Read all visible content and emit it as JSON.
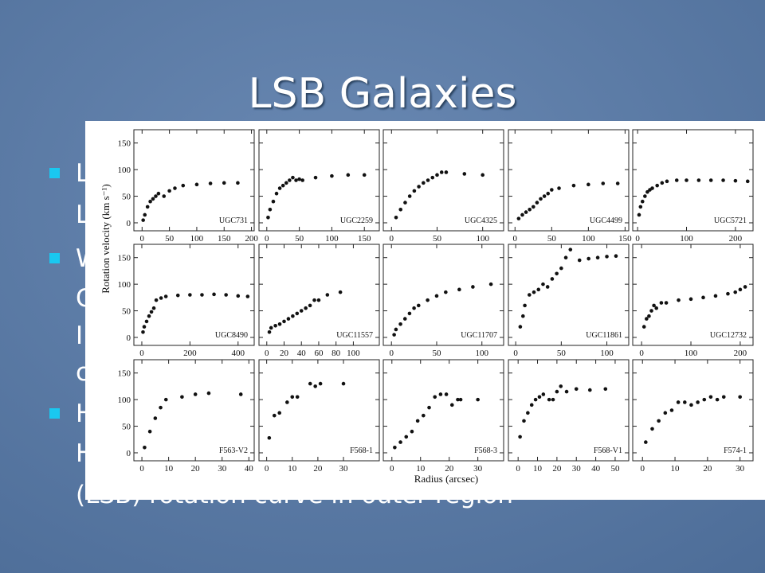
{
  "slide": {
    "title": "LSB Galaxies",
    "bullets": [
      [
        "L",
        "L"
      ],
      [
        "W",
        "C",
        "I",
        "c"
      ],
      [
        "H",
        "H",
        "(LSB) rotation curve in outer region"
      ]
    ]
  },
  "figure": {
    "ylabel": "Rotation velocity (km s⁻¹)",
    "xlabel": "Radius (arcsec)"
  },
  "chart_data": [
    {
      "type": "scatter",
      "title": "UGC731",
      "x": [
        2,
        5,
        10,
        15,
        20,
        25,
        30,
        40,
        50,
        60,
        75,
        100,
        125,
        150,
        175
      ],
      "values": [
        5,
        15,
        30,
        40,
        45,
        50,
        55,
        50,
        60,
        65,
        70,
        72,
        74,
        75,
        75
      ],
      "xlim": [
        -15,
        205
      ],
      "ylim": [
        -15,
        175
      ],
      "xticks": [
        0,
        50,
        100,
        150,
        200
      ],
      "yticks": [
        0,
        50,
        100,
        150
      ],
      "color": "#111"
    },
    {
      "type": "scatter",
      "title": "UGC2259",
      "x": [
        2,
        5,
        10,
        15,
        20,
        25,
        30,
        35,
        40,
        45,
        50,
        55,
        75,
        100,
        125,
        150
      ],
      "values": [
        10,
        25,
        40,
        55,
        65,
        70,
        75,
        80,
        85,
        80,
        82,
        80,
        85,
        88,
        90,
        90
      ],
      "xlim": [
        -12,
        173
      ],
      "ylim": [
        -15,
        175
      ],
      "xticks": [
        0,
        50,
        100,
        150
      ],
      "yticks": [
        0,
        50,
        100,
        150
      ],
      "color": "#111"
    },
    {
      "type": "scatter",
      "title": "UGC4325",
      "x": [
        5,
        10,
        15,
        20,
        25,
        30,
        35,
        40,
        45,
        50,
        55,
        60,
        80,
        100
      ],
      "values": [
        10,
        25,
        38,
        50,
        60,
        68,
        75,
        80,
        85,
        90,
        95,
        95,
        92,
        90
      ],
      "xlim": [
        -9,
        123
      ],
      "ylim": [
        -15,
        175
      ],
      "xticks": [
        0,
        50,
        100
      ],
      "yticks": [
        0,
        50,
        100,
        150
      ],
      "color": "#111"
    },
    {
      "type": "scatter",
      "title": "UGC4499",
      "x": [
        5,
        10,
        15,
        20,
        25,
        30,
        35,
        40,
        45,
        50,
        60,
        80,
        100,
        120,
        140
      ],
      "values": [
        8,
        15,
        20,
        25,
        30,
        38,
        45,
        50,
        55,
        62,
        65,
        70,
        72,
        74,
        74
      ],
      "xlim": [
        -9,
        155
      ],
      "ylim": [
        -15,
        175
      ],
      "xticks": [
        0,
        50,
        100,
        150
      ],
      "yticks": [
        0,
        50,
        100,
        150
      ],
      "color": "#111"
    },
    {
      "type": "scatter",
      "title": "UGC5721",
      "x": [
        3,
        6,
        10,
        15,
        20,
        25,
        30,
        40,
        50,
        60,
        80,
        100,
        125,
        150,
        175,
        200,
        225
      ],
      "values": [
        15,
        30,
        40,
        50,
        58,
        62,
        65,
        70,
        75,
        78,
        80,
        80,
        80,
        80,
        80,
        79,
        78
      ],
      "xlim": [
        -10,
        236
      ],
      "ylim": [
        -15,
        175
      ],
      "xticks": [
        0,
        100,
        200
      ],
      "yticks": [
        0,
        50,
        100,
        150
      ],
      "color": "#111"
    },
    {
      "type": "scatter",
      "title": "UGC8490",
      "x": [
        5,
        10,
        20,
        30,
        40,
        50,
        60,
        80,
        100,
        150,
        200,
        250,
        300,
        350,
        400,
        440
      ],
      "values": [
        10,
        20,
        30,
        40,
        48,
        55,
        70,
        74,
        77,
        79,
        80,
        80,
        81,
        80,
        78,
        77
      ],
      "xlim": [
        -33,
        467
      ],
      "ylim": [
        -15,
        175
      ],
      "xticks": [
        0,
        200,
        400
      ],
      "yticks": [
        0,
        50,
        100,
        150
      ],
      "color": "#111"
    },
    {
      "type": "scatter",
      "title": "UGC11557",
      "x": [
        3,
        5,
        10,
        15,
        20,
        25,
        30,
        35,
        40,
        45,
        50,
        55,
        60,
        70,
        85
      ],
      "values": [
        10,
        18,
        22,
        25,
        30,
        35,
        40,
        45,
        50,
        55,
        60,
        70,
        70,
        80,
        85
      ],
      "xlim": [
        -9,
        130
      ],
      "ylim": [
        -15,
        175
      ],
      "xticks": [
        0,
        20,
        40,
        60,
        80,
        100
      ],
      "yticks": [
        0,
        50,
        100,
        150
      ],
      "color": "#111"
    },
    {
      "type": "scatter",
      "title": "UGC11707",
      "x": [
        3,
        5,
        10,
        15,
        20,
        25,
        30,
        40,
        50,
        60,
        75,
        90,
        110
      ],
      "values": [
        5,
        15,
        25,
        35,
        45,
        55,
        60,
        70,
        78,
        85,
        90,
        95,
        100
      ],
      "xlim": [
        -9,
        124
      ],
      "ylim": [
        -15,
        175
      ],
      "xticks": [
        0,
        50,
        100
      ],
      "yticks": [
        0,
        50,
        100,
        150
      ],
      "color": "#111"
    },
    {
      "type": "scatter",
      "title": "UGC11861",
      "x": [
        5,
        8,
        10,
        15,
        20,
        25,
        30,
        35,
        40,
        45,
        50,
        55,
        60,
        70,
        80,
        90,
        100,
        110
      ],
      "values": [
        20,
        40,
        60,
        80,
        85,
        90,
        100,
        95,
        110,
        120,
        130,
        150,
        165,
        145,
        148,
        150,
        152,
        153
      ],
      "xlim": [
        -8,
        124
      ],
      "ylim": [
        -15,
        175
      ],
      "xticks": [
        0,
        50,
        100
      ],
      "yticks": [
        0,
        50,
        100,
        150
      ],
      "color": "#111"
    },
    {
      "type": "scatter",
      "title": "UGC12732",
      "x": [
        5,
        10,
        15,
        20,
        25,
        30,
        40,
        50,
        75,
        100,
        125,
        150,
        175,
        190,
        200,
        210
      ],
      "values": [
        20,
        35,
        40,
        50,
        60,
        55,
        65,
        65,
        70,
        72,
        75,
        78,
        82,
        85,
        90,
        95
      ],
      "xlim": [
        -18,
        226
      ],
      "ylim": [
        -15,
        175
      ],
      "xticks": [
        0,
        100,
        200
      ],
      "yticks": [
        0,
        50,
        100,
        150
      ],
      "color": "#111"
    },
    {
      "type": "scatter",
      "title": "F563-V2",
      "x": [
        1,
        3,
        5,
        7,
        9,
        15,
        20,
        25,
        37
      ],
      "values": [
        10,
        40,
        65,
        85,
        100,
        105,
        110,
        112,
        110
      ],
      "xlim": [
        -3,
        42
      ],
      "ylim": [
        -15,
        175
      ],
      "xticks": [
        0,
        10,
        20,
        30,
        40
      ],
      "yticks": [
        0,
        50,
        100,
        150
      ],
      "color": "#111"
    },
    {
      "type": "scatter",
      "title": "F568-1",
      "x": [
        1,
        3,
        5,
        8,
        10,
        12,
        17,
        19,
        21,
        30
      ],
      "values": [
        28,
        70,
        75,
        95,
        105,
        105,
        130,
        125,
        130,
        130
      ],
      "xlim": [
        -3,
        44
      ],
      "ylim": [
        -15,
        175
      ],
      "xticks": [
        0,
        10,
        20,
        30
      ],
      "yticks": [
        0,
        50,
        100,
        150
      ],
      "color": "#111"
    },
    {
      "type": "scatter",
      "title": "F568-3",
      "x": [
        1,
        3,
        5,
        7,
        9,
        11,
        13,
        15,
        17,
        19,
        21,
        23,
        24,
        30
      ],
      "values": [
        10,
        20,
        30,
        40,
        60,
        70,
        85,
        105,
        110,
        110,
        90,
        100,
        100,
        100
      ],
      "xlim": [
        -3,
        39
      ],
      "ylim": [
        -15,
        175
      ],
      "xticks": [
        0,
        10,
        20,
        30
      ],
      "yticks": [
        0,
        50,
        100,
        150
      ],
      "color": "#111"
    },
    {
      "type": "scatter",
      "title": "F568-V1",
      "x": [
        1,
        3,
        5,
        7,
        9,
        11,
        13,
        16,
        18,
        20,
        22,
        25,
        30,
        37,
        45
      ],
      "values": [
        30,
        60,
        75,
        90,
        100,
        105,
        110,
        100,
        100,
        115,
        125,
        115,
        120,
        118,
        120
      ],
      "xlim": [
        -5,
        57
      ],
      "ylim": [
        -15,
        175
      ],
      "xticks": [
        0,
        10,
        20,
        30,
        40,
        50
      ],
      "yticks": [
        0,
        50,
        100,
        150
      ],
      "color": "#111"
    },
    {
      "type": "scatter",
      "title": "F574-1",
      "x": [
        1,
        3,
        5,
        7,
        9,
        11,
        13,
        15,
        17,
        19,
        21,
        23,
        25,
        30
      ],
      "values": [
        20,
        45,
        60,
        75,
        80,
        95,
        95,
        90,
        95,
        100,
        105,
        100,
        105,
        105
      ],
      "xlim": [
        -3,
        34
      ],
      "ylim": [
        -15,
        175
      ],
      "xticks": [
        0,
        10,
        20,
        30
      ],
      "yticks": [
        0,
        50,
        100,
        150
      ],
      "color": "#111"
    }
  ]
}
